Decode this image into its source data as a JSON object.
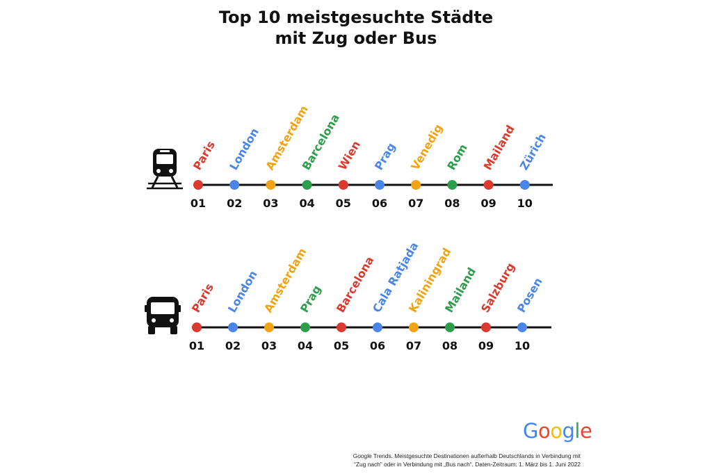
{
  "title": {
    "line1": "Top 10 meistgesuchte Städte",
    "line2": "mit Zug oder Bus"
  },
  "colors": {
    "red": "#db3a2e",
    "blue": "#4a86e8",
    "yellow": "#f0a413",
    "green": "#2f9e4c",
    "line": "#111111"
  },
  "color_cycle": [
    "red",
    "blue",
    "yellow",
    "green"
  ],
  "rows": [
    {
      "id": "train",
      "icon": "train-icon",
      "cities": [
        "Paris",
        "London",
        "Amsterdam",
        "Barcelona",
        "Wien",
        "Prag",
        "Venedig",
        "Rom",
        "Mailand",
        "Zürich"
      ],
      "ranks": [
        "01",
        "02",
        "03",
        "04",
        "05",
        "06",
        "07",
        "08",
        "09",
        "10"
      ]
    },
    {
      "id": "bus",
      "icon": "bus-icon",
      "cities": [
        "Paris",
        "London",
        "Amsterdam",
        "Prag",
        "Barcelona",
        "Cala Ratjada",
        "Kaliningrad",
        "Mailand",
        "Salzburg",
        "Posen"
      ],
      "ranks": [
        "01",
        "02",
        "03",
        "04",
        "05",
        "06",
        "07",
        "08",
        "09",
        "10"
      ]
    }
  ],
  "logo": {
    "letters": [
      "G",
      "o",
      "o",
      "g",
      "l",
      "e"
    ],
    "letter_colors": [
      "#4285f4",
      "#ea4335",
      "#fbbc05",
      "#4285f4",
      "#34a853",
      "#ea4335"
    ]
  },
  "footnote": {
    "line1": "Google Trends. Meistgesuchte Destinationen außerhalb Deutschlands in Verbindung mit",
    "line2": "“Zug nach” oder in Verbindung mit „Bus nach“. Daten-Zeitraum: 1. März bis 1. Juni 2022"
  }
}
